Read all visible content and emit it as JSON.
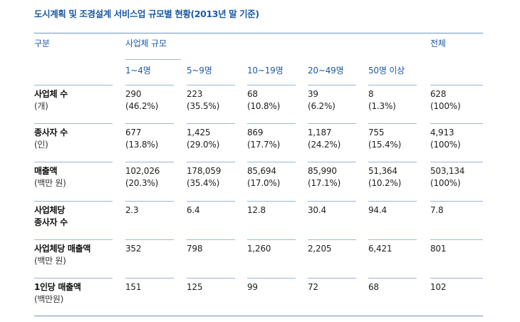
{
  "title": "도시계획 및 조경설계 서비스업 규모별 현황(2013년 말 기준)",
  "header": {
    "category": "구분",
    "size_group": "사업체 규모",
    "total": "전체",
    "columns": [
      "1~4명",
      "5~9명",
      "10~19명",
      "20~49명",
      "50명 이상"
    ]
  },
  "rows": [
    {
      "label": "사업체 수",
      "unit": "(개)",
      "values": [
        [
          "290",
          "(46.2%)"
        ],
        [
          "223",
          "(35.5%)"
        ],
        [
          "68",
          "(10.8%)"
        ],
        [
          "39",
          "(6.2%)"
        ],
        [
          "8",
          "(1.3%)"
        ],
        [
          "628",
          "(100%)"
        ]
      ]
    },
    {
      "label": "종사자 수",
      "unit": "(인)",
      "values": [
        [
          "677",
          "(13.8%)"
        ],
        [
          "1,425",
          "(29.0%)"
        ],
        [
          "869",
          "(17.7%)"
        ],
        [
          "1,187",
          "(24.2%)"
        ],
        [
          "755",
          "(15.4%)"
        ],
        [
          "4,913",
          "(100%)"
        ]
      ]
    },
    {
      "label": "매출액",
      "unit": "(백만 원)",
      "values": [
        [
          "102,026",
          "(20.3%)"
        ],
        [
          "178,059",
          "(35.4%)"
        ],
        [
          "85,694",
          "(17.0%)"
        ],
        [
          "85,990",
          "(17.1%)"
        ],
        [
          "51,364",
          "(10.2%)"
        ],
        [
          "503,134",
          "(100%)"
        ]
      ]
    },
    {
      "label": "사업체당",
      "unit": "종사자 수",
      "values": [
        [
          "2.3",
          ""
        ],
        [
          "6.4",
          ""
        ],
        [
          "12.8",
          ""
        ],
        [
          "30.4",
          ""
        ],
        [
          "94.4",
          ""
        ],
        [
          "7.8",
          ""
        ]
      ]
    },
    {
      "label": "사업체당 매출액",
      "unit": "(백만 원)",
      "values": [
        [
          "352",
          ""
        ],
        [
          "798",
          ""
        ],
        [
          "1,260",
          ""
        ],
        [
          "2,205",
          ""
        ],
        [
          "6,421",
          ""
        ],
        [
          "801",
          ""
        ]
      ]
    },
    {
      "label": "1인당 매출액",
      "unit": "(백만원)",
      "values": [
        [
          "151",
          ""
        ],
        [
          "125",
          ""
        ],
        [
          "99",
          ""
        ],
        [
          "72",
          ""
        ],
        [
          "68",
          ""
        ],
        [
          "102",
          ""
        ]
      ]
    }
  ]
}
